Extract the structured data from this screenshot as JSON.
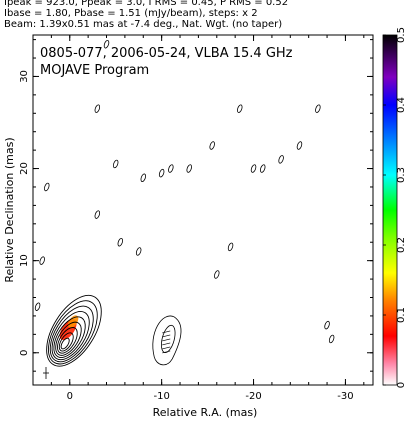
{
  "header": {
    "line1": "Ipeak = 923.0, Ppeak = 3.0, I RMS = 0.45, P RMS = 0.52",
    "line2": "Ibase = 1.80, Pbase = 1.51 (mJy/beam), steps: x 2",
    "line3": "Beam: 1.39x0.51 mas at -7.4 deg., Nat. Wgt. (no taper)"
  },
  "overlay": {
    "title": "0805-077, 2006-05-24, VLBA 15.4 GHz",
    "subtitle": "MOJAVE Program"
  },
  "chart_data": {
    "type": "contour",
    "xlabel": "Relative R.A. (mas)",
    "ylabel": "Relative Declination (mas)",
    "xlim": [
      4,
      -33
    ],
    "ylim": [
      -3.5,
      34.5
    ],
    "x_ticks": [
      0,
      -10,
      -20,
      -30
    ],
    "y_ticks": [
      0,
      10,
      20,
      30
    ],
    "x_minor_step": 2,
    "y_minor_step": 2,
    "colorbar": {
      "ticks": [
        0,
        0.1,
        0.2,
        0.3,
        0.4,
        0.5
      ],
      "range": [
        0,
        0.5
      ],
      "gradient": [
        "#ffffff",
        "#ff0000",
        "#ff8000",
        "#ffff00",
        "#80ff00",
        "#00ff00",
        "#00ffff",
        "#0080ff",
        "#0000ff",
        "#000000"
      ]
    },
    "core": {
      "x": 0.5,
      "y": 1.0,
      "levels": 9
    },
    "jet_knot": {
      "x": -10.5,
      "y": 1.5
    },
    "isolated_contours": [
      {
        "x": 2.5,
        "y": 18
      },
      {
        "x": -3,
        "y": 26.5
      },
      {
        "x": -3,
        "y": 15
      },
      {
        "x": -5,
        "y": 20.5
      },
      {
        "x": -5.5,
        "y": 12
      },
      {
        "x": -7.5,
        "y": 11
      },
      {
        "x": -8,
        "y": 19
      },
      {
        "x": -10,
        "y": 19.5
      },
      {
        "x": -11,
        "y": 20
      },
      {
        "x": -13,
        "y": 20
      },
      {
        "x": -15.5,
        "y": 22.5
      },
      {
        "x": -16,
        "y": 8.5
      },
      {
        "x": -17.5,
        "y": 11.5
      },
      {
        "x": -18.5,
        "y": 26.5
      },
      {
        "x": -20,
        "y": 20
      },
      {
        "x": -21,
        "y": 20
      },
      {
        "x": -23,
        "y": 21
      },
      {
        "x": -25,
        "y": 22.5
      },
      {
        "x": -27,
        "y": 26.5
      },
      {
        "x": -28,
        "y": 3
      },
      {
        "x": -28.5,
        "y": 1.5
      },
      {
        "x": -4,
        "y": 33.5
      },
      {
        "x": 3,
        "y": 10
      },
      {
        "x": 3.5,
        "y": 5
      }
    ],
    "beam": {
      "major_mas": 1.39,
      "minor_mas": 0.51,
      "pa_deg": -7.4
    }
  }
}
